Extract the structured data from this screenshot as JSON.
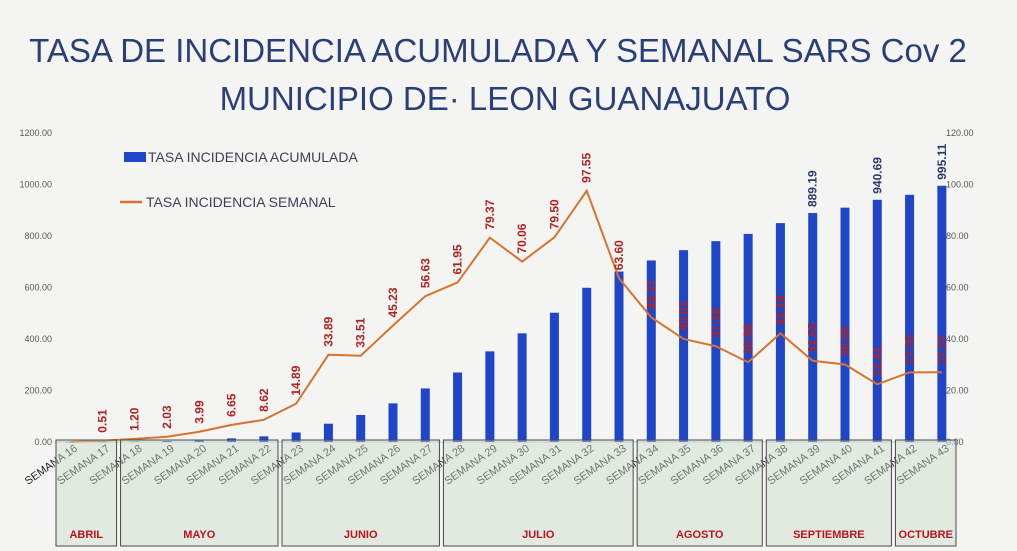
{
  "chart_data": {
    "type": "bar",
    "title_line1": "TASA DE INCIDENCIA ACUMULADA Y SEMANAL SARS Cov 2",
    "title_line2": "MUNICIPIO DE· LEON GUANAJUATO",
    "categories": [
      "SEMANA 16",
      "SEMANA 17",
      "SEMANA 18",
      "SEMANA 19",
      "SEMANA 20",
      "SEMANA 21",
      "SEMANA 22",
      "SEMANA 23",
      "SEMANA 24",
      "SEMANA 25",
      "SEMANA 26",
      "SEMANA 27",
      "SEMANA 28",
      "SEMANA 29",
      "SEMANA 30",
      "SEMANA 31",
      "SEMANA 32",
      "SEMANA 33",
      "SEMANA 34",
      "SEMANA 35",
      "SEMANA 36",
      "SEMANA 37",
      "SEMANA 38",
      "SEMANA 39",
      "SEMANA 40",
      "SEMANA 41",
      "SEMANA 42",
      "SEMANA 43"
    ],
    "left_axis": {
      "ylim": [
        0,
        1200
      ],
      "ticks": [
        "0.00",
        "200.00",
        "400.00",
        "600.00",
        "800.00",
        "1000.00",
        "1200.00"
      ]
    },
    "right_axis": {
      "ylim": [
        0,
        120
      ],
      "ticks": [
        "0.00",
        "20.00",
        "40.00",
        "60.00",
        "80.00",
        "100.00",
        "120.00"
      ]
    },
    "series": [
      {
        "name": "TASA INCIDENCIA ACUMULADA",
        "type": "bar",
        "axis": "left",
        "color": "#1f45c8",
        "values": [
          0.5,
          1,
          2,
          4,
          8,
          14,
          22,
          37,
          71,
          105,
          150,
          208,
          270,
          352,
          422,
          502,
          599,
          662,
          705,
          745,
          780,
          808,
          850,
          889.19,
          910,
          940.69,
          960,
          995.11
        ],
        "labels": [
          "",
          "",
          "",
          "",
          "",
          "",
          "",
          "",
          "",
          "",
          "",
          "",
          "",
          "",
          "",
          "",
          "",
          "",
          "",
          "",
          "",
          "",
          "",
          "889.19",
          "",
          "940.69",
          "",
          "995.11"
        ]
      },
      {
        "name": "TASA INCIDENCIA SEMANAL",
        "type": "line",
        "axis": "right",
        "color": "#d9722c",
        "values": [
          0,
          0.51,
          1.2,
          2.03,
          3.99,
          6.65,
          8.62,
          14.89,
          33.89,
          33.51,
          45.23,
          56.63,
          61.95,
          79.37,
          70.06,
          79.5,
          97.55,
          63.6,
          48.37,
          40.01,
          37.18,
          30.98,
          42.18,
          31.55,
          30.09,
          22.41,
          27.05,
          27.07
        ],
        "labels": [
          "",
          "0.51",
          "1.20",
          "2.03",
          "3.99",
          "6.65",
          "8.62",
          "14.89",
          "33.89",
          "33.51",
          "45.23",
          "56.63",
          "61.95",
          "79.37",
          "70.06",
          "79.50",
          "97.55",
          "63.60",
          "48.37",
          "40.01",
          "37.18",
          "30.98",
          "42.18",
          "31.55",
          "30.09",
          "22.41",
          "27.05",
          "27.07"
        ]
      }
    ],
    "months": [
      {
        "label": "ABRIL",
        "from": 0,
        "to": 1
      },
      {
        "label": "MAYO",
        "from": 2,
        "to": 6
      },
      {
        "label": "JUNIO",
        "from": 7,
        "to": 11
      },
      {
        "label": "JULIO",
        "from": 12,
        "to": 17
      },
      {
        "label": "AGOSTO",
        "from": 18,
        "to": 21
      },
      {
        "label": "SEPTIEMBRE",
        "from": 22,
        "to": 25
      },
      {
        "label": "OCTUBRE",
        "from": 26,
        "to": 27
      }
    ],
    "colors": {
      "title": "#2a3f78",
      "month_box": "#c9dccb",
      "month_text": "#b8141b",
      "line_label": "#b22222"
    }
  }
}
